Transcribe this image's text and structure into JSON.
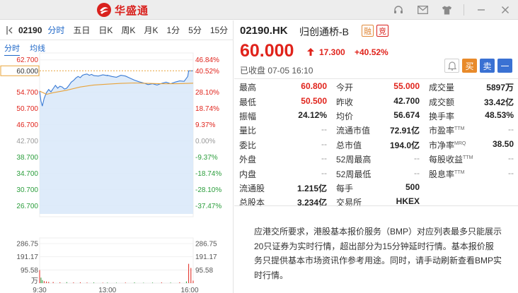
{
  "app": {
    "brand_name": "华盛通"
  },
  "titlebar": {
    "icons": [
      "headset-icon",
      "mail-icon",
      "shirt-icon",
      "minimize-icon",
      "close-icon"
    ]
  },
  "left": {
    "code": "02190",
    "tabs": [
      "分时",
      "五日",
      "日K",
      "周K",
      "月K",
      "1分",
      "5分",
      "15分"
    ],
    "active_tab": "分时",
    "subtabs": [
      "分时",
      "均线"
    ]
  },
  "chart_data": {
    "type": "line",
    "title": "",
    "price_ticks": [
      "62.700",
      "60.000",
      "54.700",
      "50.700",
      "46.700",
      "42.700",
      "38.700",
      "34.700",
      "30.700",
      "26.700"
    ],
    "pct_ticks": [
      "46.84%",
      "40.52%",
      "28.10%",
      "18.74%",
      "9.37%",
      "0.00%",
      "-9.37%",
      "-18.74%",
      "-28.10%",
      "-37.47%"
    ],
    "volume_ticks": [
      "286.75",
      "191.17",
      "95.58",
      "万"
    ],
    "volume_ticks_right": [
      "286.75",
      "191.17",
      "95.58"
    ],
    "time_ticks": [
      "9:30",
      "13:00",
      "16:00"
    ],
    "prev_close": 42.7,
    "current_price": 60.0,
    "ylim": [
      24.7,
      63.7
    ],
    "x_sessions": [
      "09:30",
      "16:10"
    ],
    "price_series": [
      [
        "09:30",
        55.0
      ],
      [
        "09:33",
        52.5
      ],
      [
        "09:36",
        51.3
      ],
      [
        "09:40",
        53.2
      ],
      [
        "09:45",
        54.6
      ],
      [
        "09:50",
        55.4
      ],
      [
        "09:55",
        54.8
      ],
      [
        "10:00",
        55.6
      ],
      [
        "10:05",
        56.4
      ],
      [
        "10:10",
        55.7
      ],
      [
        "10:15",
        56.2
      ],
      [
        "10:20",
        56.0
      ],
      [
        "10:25",
        55.5
      ],
      [
        "10:30",
        55.7
      ],
      [
        "10:35",
        56.4
      ],
      [
        "10:40",
        57.2
      ],
      [
        "10:45",
        57.6
      ],
      [
        "10:50",
        58.2
      ],
      [
        "10:55",
        58.6
      ],
      [
        "11:00",
        58.3
      ],
      [
        "11:05",
        58.9
      ],
      [
        "11:10",
        59.1
      ],
      [
        "11:15",
        59.2
      ],
      [
        "11:20",
        58.9
      ],
      [
        "11:25",
        59.1
      ],
      [
        "11:30",
        58.8
      ],
      [
        "11:40",
        58.7
      ],
      [
        "11:50",
        59.0
      ],
      [
        "12:00",
        58.8
      ],
      [
        "13:00",
        58.9
      ],
      [
        "13:10",
        58.6
      ],
      [
        "13:20",
        58.4
      ],
      [
        "13:30",
        58.9
      ],
      [
        "13:40",
        58.7
      ],
      [
        "13:50",
        58.2
      ],
      [
        "14:00",
        57.7
      ],
      [
        "14:10",
        57.3
      ],
      [
        "14:20",
        57.0
      ],
      [
        "14:30",
        56.6
      ],
      [
        "14:40",
        56.8
      ],
      [
        "14:50",
        56.5
      ],
      [
        "15:00",
        56.9
      ],
      [
        "15:10",
        57.2
      ],
      [
        "15:20",
        56.8
      ],
      [
        "15:30",
        57.2
      ],
      [
        "15:40",
        57.5
      ],
      [
        "15:50",
        57.4
      ],
      [
        "15:58",
        58.6
      ],
      [
        "16:00",
        60.0
      ],
      [
        "16:10",
        60.0
      ]
    ],
    "avg_series": [
      [
        "09:30",
        55.0
      ],
      [
        "09:45",
        54.2
      ],
      [
        "10:00",
        54.6
      ],
      [
        "10:30",
        55.2
      ],
      [
        "11:00",
        56.0
      ],
      [
        "11:30",
        56.5
      ],
      [
        "13:00",
        56.7
      ],
      [
        "13:30",
        56.9
      ],
      [
        "14:00",
        57.0
      ],
      [
        "14:30",
        56.9
      ],
      [
        "15:00",
        56.8
      ],
      [
        "15:30",
        56.8
      ],
      [
        "16:00",
        56.9
      ],
      [
        "16:10",
        56.95
      ]
    ],
    "volume_max": 286.75,
    "volume_series": [
      [
        "09:30",
        95
      ],
      [
        "09:33",
        40
      ],
      [
        "09:36",
        22
      ],
      [
        "09:40",
        15
      ],
      [
        "09:45",
        12
      ],
      [
        "09:50",
        9
      ],
      [
        "10:00",
        8
      ],
      [
        "10:15",
        6
      ],
      [
        "10:30",
        7
      ],
      [
        "10:45",
        5
      ],
      [
        "11:00",
        6
      ],
      [
        "11:15",
        4
      ],
      [
        "11:30",
        5
      ],
      [
        "11:50",
        3
      ],
      [
        "13:00",
        4
      ],
      [
        "13:20",
        3
      ],
      [
        "13:40",
        4
      ],
      [
        "14:00",
        5
      ],
      [
        "14:20",
        3
      ],
      [
        "14:40",
        4
      ],
      [
        "15:00",
        5
      ],
      [
        "15:20",
        4
      ],
      [
        "15:40",
        6
      ],
      [
        "15:55",
        12
      ],
      [
        "16:00",
        140
      ],
      [
        "16:05",
        110
      ],
      [
        "16:10",
        18
      ]
    ],
    "colors": {
      "price": "#3a7bd5",
      "avg": "#e8a33a",
      "area": "#d8e8f9",
      "up": "#e0231b",
      "down": "#2a9d3b"
    }
  },
  "quote": {
    "code": "02190.HK",
    "name": "归创通桥-B",
    "badge1": "融",
    "badge2": "竞",
    "price": "60.000",
    "change": "17.300",
    "change_pct": "+40.52%",
    "status": "已收盘 07-05 16:10",
    "buttons": {
      "buy": "买",
      "sell": "卖",
      "more": "一"
    }
  },
  "stats": [
    [
      {
        "label": "最高",
        "value": "60.800",
        "style": "red"
      },
      {
        "label": "今开",
        "value": "55.000",
        "style": "red"
      },
      {
        "label": "成交量",
        "value": "5897万",
        "style": ""
      }
    ],
    [
      {
        "label": "最低",
        "value": "50.500",
        "style": "red"
      },
      {
        "label": "昨收",
        "value": "42.700",
        "style": ""
      },
      {
        "label": "成交额",
        "value": "33.42亿",
        "style": ""
      }
    ],
    [
      {
        "label": "振幅",
        "value": "24.12%",
        "style": ""
      },
      {
        "label": "均价",
        "value": "56.674",
        "style": ""
      },
      {
        "label": "换手率",
        "value": "48.53%",
        "style": ""
      }
    ],
    [
      {
        "label": "量比",
        "value": "--",
        "style": "dash"
      },
      {
        "label": "流通市值",
        "value": "72.91亿",
        "style": ""
      },
      {
        "label": "市盈率",
        "sup": "TTM",
        "value": "--",
        "style": "dash"
      }
    ],
    [
      {
        "label": "委比",
        "value": "--",
        "style": "dash"
      },
      {
        "label": "总市值",
        "value": "194.0亿",
        "style": ""
      },
      {
        "label": "市净率",
        "sup": "MRQ",
        "value": "38.50",
        "style": ""
      }
    ],
    [
      {
        "label": "外盘",
        "value": "--",
        "style": "dash"
      },
      {
        "label": "52周最高",
        "value": "--",
        "style": "dash"
      },
      {
        "label": "每股收益",
        "sup": "TTM",
        "value": "--",
        "style": "dash"
      }
    ],
    [
      {
        "label": "内盘",
        "value": "--",
        "style": "dash"
      },
      {
        "label": "52周最低",
        "value": "--",
        "style": "dash"
      },
      {
        "label": "股息率",
        "sup": "TTM",
        "value": "--",
        "style": "dash"
      }
    ],
    [
      {
        "label": "流通股",
        "value": "1.215亿",
        "style": ""
      },
      {
        "label": "每手",
        "value": "500",
        "style": ""
      },
      {
        "label": "",
        "value": "",
        "style": ""
      }
    ],
    [
      {
        "label": "总股本",
        "value": "3.234亿",
        "style": ""
      },
      {
        "label": "交易所",
        "value": "HKEX",
        "style": ""
      },
      {
        "label": "",
        "value": "",
        "style": ""
      }
    ]
  ],
  "notice": "应港交所要求，港股基本报价服务（BMP）对应列表最多只能展示20只证券为实时行情，超出部分为15分钟延时行情。基本报价服务只提供基本市场资讯作参考用途。同时，请手动刷新查看BMP实时行情。"
}
